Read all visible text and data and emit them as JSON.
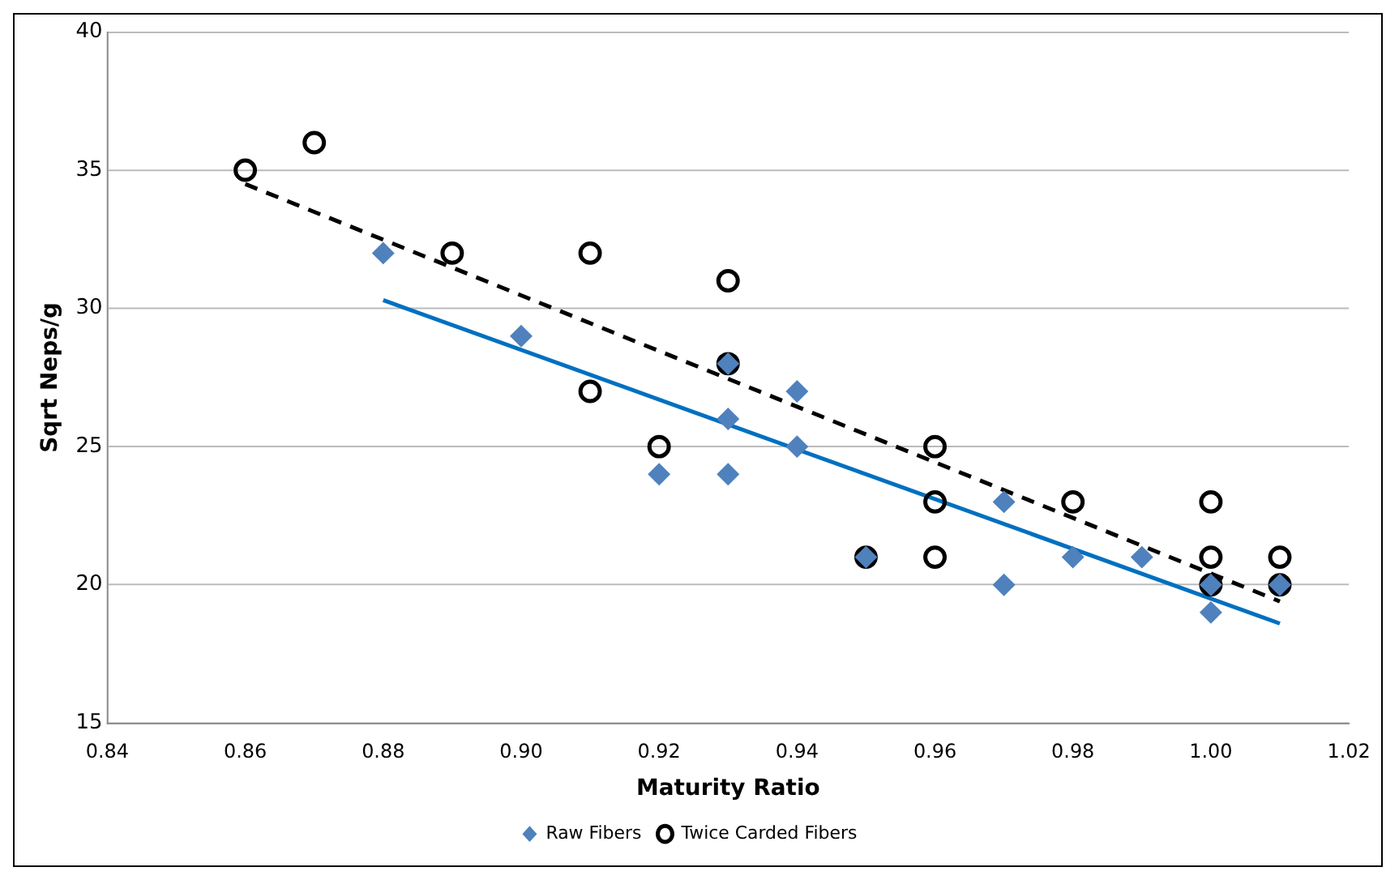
{
  "chart_data": {
    "type": "scatter",
    "xlabel": "Maturity Ratio",
    "ylabel": "Sqrt Neps/g",
    "grid": "y",
    "legend": "bottom",
    "xlim": [
      0.84,
      1.02
    ],
    "xticks": [
      {
        "value": 0.84,
        "label": "0.84"
      },
      {
        "value": 0.86,
        "label": "0.86"
      },
      {
        "value": 0.88,
        "label": "0.88"
      },
      {
        "value": 0.9,
        "label": "0.90"
      },
      {
        "value": 0.92,
        "label": "0.92"
      },
      {
        "value": 0.94,
        "label": "0.94"
      },
      {
        "value": 0.96,
        "label": "0.96"
      },
      {
        "value": 0.98,
        "label": "0.98"
      },
      {
        "value": 1.0,
        "label": "1.00"
      },
      {
        "value": 1.02,
        "label": "1.02"
      }
    ],
    "ylim": [
      15,
      40
    ],
    "yticks": [
      15,
      20,
      25,
      30,
      35,
      40
    ],
    "series": [
      {
        "name": "Raw Fibers",
        "type": "scatter",
        "marker": "diamond",
        "color": "#4f81bd",
        "x": [
          0.88,
          0.9,
          0.92,
          0.93,
          0.93,
          0.93,
          0.94,
          0.94,
          0.95,
          0.97,
          0.97,
          0.98,
          0.99,
          1.0,
          1.0,
          1.01
        ],
        "values": [
          32,
          29,
          24,
          26,
          24,
          28,
          27,
          25,
          21,
          23,
          20,
          21,
          21,
          19,
          20,
          20
        ]
      },
      {
        "name": "Twice Carded Fibers",
        "type": "scatter",
        "marker": "circle",
        "color": "#000000",
        "x": [
          0.86,
          0.87,
          0.89,
          0.91,
          0.91,
          0.92,
          0.93,
          0.93,
          0.95,
          0.96,
          0.96,
          0.96,
          0.98,
          1.0,
          1.0,
          1.0,
          1.01,
          1.01
        ],
        "values": [
          35,
          36,
          32,
          32,
          27,
          25,
          31,
          28,
          21,
          25,
          23,
          21,
          23,
          23,
          21,
          20,
          21,
          20
        ]
      },
      {
        "type": "line",
        "line_style": "solid",
        "color": "#0070c0",
        "x": [
          0.88,
          1.01
        ],
        "values": [
          30.3,
          18.6
        ]
      },
      {
        "type": "line",
        "line_style": "dashed",
        "color": "#000000",
        "x": [
          0.86,
          1.01
        ],
        "values": [
          34.5,
          19.4
        ]
      }
    ]
  }
}
